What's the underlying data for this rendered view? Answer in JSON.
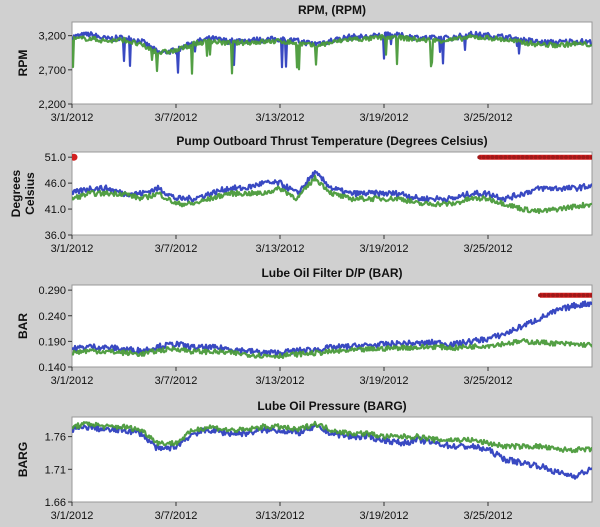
{
  "colors": {
    "background": "#d0d0d0",
    "plot_bg": "#ffffff",
    "blue_series": "#2e3fbf",
    "green_series": "#4a9a3a",
    "red_series": "#d32020"
  },
  "chart_data": [
    {
      "type": "line",
      "title": "RPM, (RPM)",
      "ylabel": "RPM",
      "ylim": [
        2200,
        3400
      ],
      "y_ticks": [
        "3,200",
        "2,700",
        "2,200"
      ],
      "y_tick_values": [
        3200,
        2700,
        2200
      ],
      "x_ticks": [
        "3/1/2012",
        "3/7/2012",
        "3/13/2012",
        "3/19/2012",
        "3/25/2012"
      ],
      "xlim_days": [
        0,
        30
      ],
      "series": [
        {
          "color": "blue",
          "x": [
            0,
            1,
            2,
            3,
            4,
            5,
            6,
            7,
            8,
            9,
            10,
            11,
            12,
            13,
            14,
            15,
            16,
            17,
            18,
            19,
            20,
            21,
            22,
            23,
            24,
            25,
            26,
            27,
            28,
            29,
            30
          ],
          "y": [
            3180,
            3220,
            3150,
            3170,
            3120,
            2950,
            2980,
            3100,
            3160,
            3120,
            3130,
            3140,
            3150,
            3120,
            3080,
            3130,
            3180,
            3180,
            3210,
            3200,
            3170,
            3160,
            3170,
            3220,
            3200,
            3180,
            3140,
            3100,
            3100,
            3120,
            3100
          ]
        },
        {
          "color": "green",
          "x": [
            0,
            1,
            2,
            3,
            4,
            5,
            6,
            7,
            8,
            9,
            10,
            11,
            12,
            13,
            14,
            15,
            16,
            17,
            18,
            19,
            20,
            21,
            22,
            23,
            24,
            25,
            26,
            27,
            28,
            29,
            30
          ],
          "y": [
            3150,
            3160,
            3120,
            3140,
            3060,
            2950,
            2980,
            3080,
            3120,
            3090,
            3100,
            3110,
            3120,
            3090,
            3050,
            3100,
            3150,
            3150,
            3180,
            3170,
            3140,
            3130,
            3140,
            3180,
            3170,
            3140,
            3100,
            3070,
            3060,
            3080,
            3070
          ]
        }
      ]
    },
    {
      "type": "line",
      "title": "Pump Outboard Thrust Temperature (Degrees Celsius)",
      "ylabel": "Degrees Celsius",
      "ylim": [
        36,
        52
      ],
      "y_ticks": [
        "51.0",
        "46.0",
        "41.0",
        "36.0"
      ],
      "y_tick_values": [
        51,
        46,
        41,
        36
      ],
      "x_ticks": [
        "3/1/2012",
        "3/7/2012",
        "3/13/2012",
        "3/19/2012",
        "3/25/2012"
      ],
      "xlim_days": [
        0,
        30
      ],
      "series": [
        {
          "color": "blue",
          "x": [
            0,
            1,
            2,
            3,
            4,
            5,
            6,
            7,
            8,
            9,
            10,
            11,
            12,
            13,
            14,
            15,
            16,
            17,
            18,
            19,
            20,
            21,
            22,
            23,
            24,
            25,
            26,
            27,
            28,
            29,
            30
          ],
          "y": [
            44,
            45,
            45,
            44,
            44,
            45,
            43,
            43,
            44,
            45,
            45,
            46,
            46,
            44,
            48,
            45,
            44,
            44,
            44,
            44,
            43,
            43,
            43,
            44,
            44,
            43,
            44,
            45,
            45,
            45,
            45.5
          ]
        },
        {
          "color": "green",
          "x": [
            0,
            1,
            2,
            3,
            4,
            5,
            6,
            7,
            8,
            9,
            10,
            11,
            12,
            13,
            14,
            15,
            16,
            17,
            18,
            19,
            20,
            21,
            22,
            23,
            24,
            25,
            26,
            27,
            28,
            29,
            30
          ],
          "y": [
            43,
            44,
            44,
            44,
            43,
            44,
            42,
            42,
            43,
            44,
            44,
            44,
            45,
            43,
            47,
            44,
            43,
            43,
            43,
            43,
            42,
            42,
            42,
            43,
            43,
            42,
            41,
            40.5,
            41,
            41.5,
            42
          ]
        },
        {
          "color": "red",
          "x": [
            0,
            23.5,
            24,
            25,
            26,
            27,
            28,
            29,
            30
          ],
          "y": [
            51,
            51,
            51,
            51,
            51,
            51,
            51,
            51,
            51
          ]
        }
      ]
    },
    {
      "type": "line",
      "title": "Lube Oil Filter D/P (BAR)",
      "ylabel": "BAR",
      "ylim": [
        0.14,
        0.3
      ],
      "y_ticks": [
        "0.290",
        "0.240",
        "0.190",
        "0.140"
      ],
      "y_tick_values": [
        0.29,
        0.24,
        0.19,
        0.14
      ],
      "x_ticks": [
        "3/1/2012",
        "3/7/2012",
        "3/13/2012",
        "3/19/2012",
        "3/25/2012"
      ],
      "xlim_days": [
        0,
        30
      ],
      "series": [
        {
          "color": "blue",
          "x": [
            0,
            1,
            2,
            3,
            4,
            5,
            6,
            7,
            8,
            9,
            10,
            11,
            12,
            13,
            14,
            15,
            16,
            17,
            18,
            19,
            20,
            21,
            22,
            23,
            24,
            25,
            26,
            27,
            28,
            29,
            30
          ],
          "y": [
            0.175,
            0.18,
            0.178,
            0.175,
            0.172,
            0.18,
            0.185,
            0.178,
            0.178,
            0.176,
            0.172,
            0.168,
            0.168,
            0.172,
            0.174,
            0.178,
            0.18,
            0.182,
            0.184,
            0.186,
            0.186,
            0.188,
            0.184,
            0.19,
            0.195,
            0.205,
            0.22,
            0.235,
            0.25,
            0.26,
            0.265
          ]
        },
        {
          "color": "green",
          "x": [
            0,
            1,
            2,
            3,
            4,
            5,
            6,
            7,
            8,
            9,
            10,
            11,
            12,
            13,
            14,
            15,
            16,
            17,
            18,
            19,
            20,
            21,
            22,
            23,
            24,
            25,
            26,
            27,
            28,
            29,
            30
          ],
          "y": [
            0.168,
            0.172,
            0.17,
            0.168,
            0.165,
            0.172,
            0.176,
            0.17,
            0.17,
            0.168,
            0.165,
            0.162,
            0.162,
            0.165,
            0.167,
            0.17,
            0.172,
            0.174,
            0.176,
            0.178,
            0.178,
            0.18,
            0.177,
            0.18,
            0.182,
            0.186,
            0.19,
            0.188,
            0.186,
            0.184,
            0.183
          ]
        },
        {
          "color": "red",
          "x": [
            27,
            28,
            29,
            30
          ],
          "y": [
            0.28,
            0.28,
            0.28,
            0.28
          ]
        }
      ]
    },
    {
      "type": "line",
      "title": "Lube Oil Pressure (BARG)",
      "ylabel": "BARG",
      "ylim": [
        1.66,
        1.79
      ],
      "y_ticks": [
        "1.76",
        "1.71",
        "1.66"
      ],
      "y_tick_values": [
        1.76,
        1.71,
        1.66
      ],
      "x_ticks": [
        "3/1/2012",
        "3/7/2012",
        "3/13/2012",
        "3/19/2012",
        "3/25/2012"
      ],
      "xlim_days": [
        0,
        30
      ],
      "series": [
        {
          "color": "blue",
          "x": [
            0,
            1,
            2,
            3,
            4,
            5,
            6,
            7,
            8,
            9,
            10,
            11,
            12,
            13,
            14,
            15,
            16,
            17,
            18,
            19,
            20,
            21,
            22,
            23,
            24,
            25,
            26,
            27,
            28,
            29,
            30
          ],
          "y": [
            1.77,
            1.775,
            1.77,
            1.77,
            1.765,
            1.74,
            1.745,
            1.765,
            1.77,
            1.765,
            1.765,
            1.77,
            1.77,
            1.765,
            1.775,
            1.765,
            1.76,
            1.76,
            1.755,
            1.75,
            1.755,
            1.75,
            1.745,
            1.745,
            1.74,
            1.725,
            1.72,
            1.715,
            1.705,
            1.7,
            1.71
          ]
        },
        {
          "color": "green",
          "x": [
            0,
            1,
            2,
            3,
            4,
            5,
            6,
            7,
            8,
            9,
            10,
            11,
            12,
            13,
            14,
            15,
            16,
            17,
            18,
            19,
            20,
            21,
            22,
            23,
            24,
            25,
            26,
            27,
            28,
            29,
            30
          ],
          "y": [
            1.775,
            1.78,
            1.775,
            1.775,
            1.77,
            1.75,
            1.75,
            1.77,
            1.775,
            1.77,
            1.77,
            1.775,
            1.775,
            1.77,
            1.78,
            1.77,
            1.765,
            1.765,
            1.76,
            1.76,
            1.76,
            1.755,
            1.755,
            1.755,
            1.75,
            1.745,
            1.745,
            1.745,
            1.74,
            1.74,
            1.74
          ]
        }
      ]
    }
  ]
}
